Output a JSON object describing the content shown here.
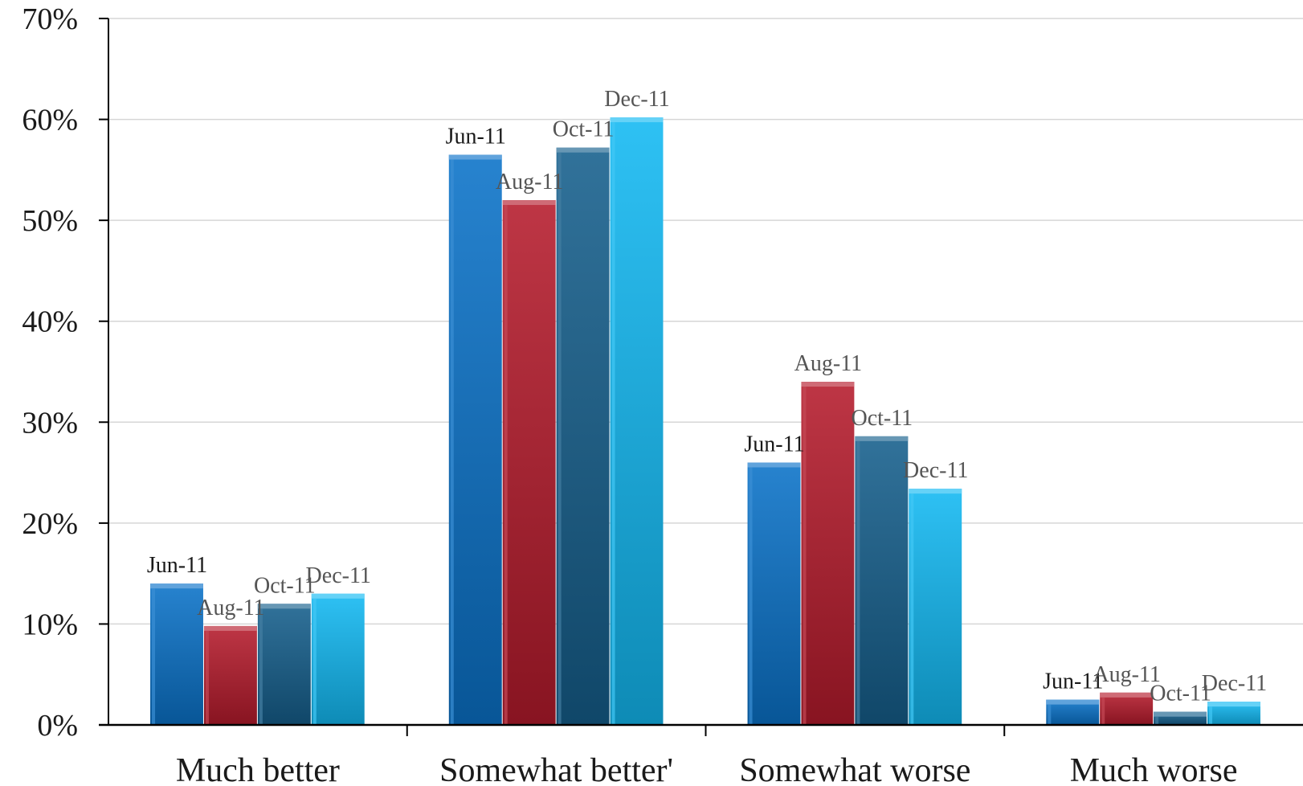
{
  "chart_data": {
    "type": "bar",
    "categories": [
      "Much better",
      "Somewhat better'",
      "Somewhat worse",
      "Much worse"
    ],
    "series": [
      {
        "name": "Jun-11",
        "values": [
          14,
          56.5,
          26,
          2.5
        ],
        "color": "#0a72c9",
        "label_color": "#1a1a1a"
      },
      {
        "name": "Aug-11",
        "values": [
          9.8,
          52,
          34,
          3.2
        ],
        "color": "#b51b2c",
        "label_color": "#555555"
      },
      {
        "name": "Oct-11",
        "values": [
          12,
          57.2,
          28.6,
          1.3
        ],
        "color": "#155f8c",
        "label_color": "#555555"
      },
      {
        "name": "Dec-11",
        "values": [
          13,
          60.2,
          23.4,
          2.3
        ],
        "color": "#12b9f2",
        "label_color": "#555555"
      }
    ],
    "y_ticks": [
      "0%",
      "10%",
      "20%",
      "30%",
      "40%",
      "50%",
      "60%",
      "70%"
    ],
    "ylim": [
      0,
      70
    ],
    "grid": true,
    "legend": "none",
    "data_labels": "series name above each bar"
  }
}
